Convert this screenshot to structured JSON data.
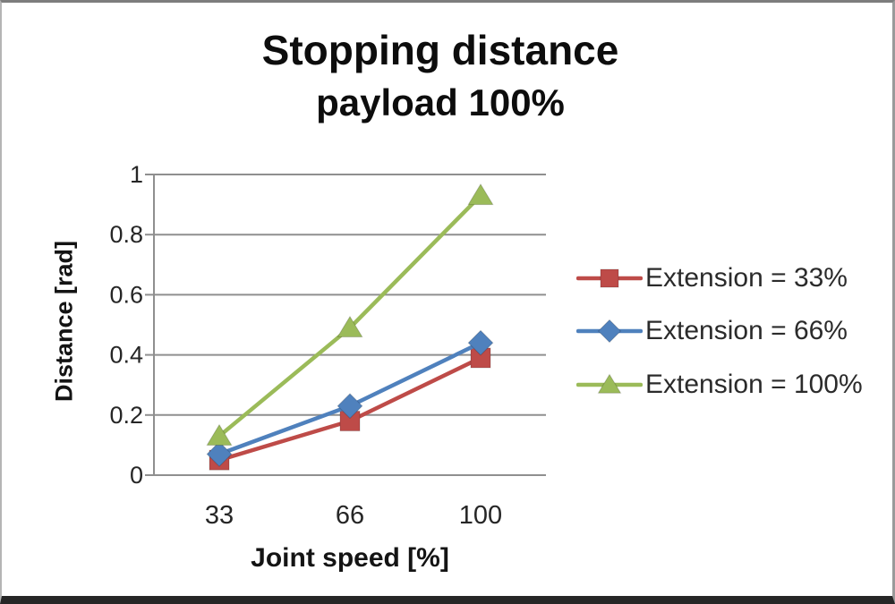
{
  "chart_data": {
    "type": "line",
    "title": "Stopping distance",
    "subtitle": "payload 100%",
    "xlabel": "Joint speed [%]",
    "ylabel": "Distance [rad]",
    "categories": [
      "33",
      "66",
      "100"
    ],
    "y_ticks": [
      "0",
      "0.2",
      "0.4",
      "0.6",
      "0.8",
      "1"
    ],
    "ylim": [
      0,
      1
    ],
    "grid": "horizontal",
    "legend_position": "right",
    "axis_color": "#8f8f8f",
    "tick_label_color": "#262626",
    "series": [
      {
        "name": "Extension = 33%",
        "marker": "square",
        "color": "#BE4B48",
        "values": [
          0.05,
          0.18,
          0.39
        ]
      },
      {
        "name": "Extension = 66%",
        "marker": "diamond",
        "color": "#4F81BD",
        "values": [
          0.07,
          0.23,
          0.44
        ]
      },
      {
        "name": "Extension = 100%",
        "marker": "triangle",
        "color": "#9BBB59",
        "values": [
          0.13,
          0.49,
          0.93
        ]
      }
    ]
  }
}
